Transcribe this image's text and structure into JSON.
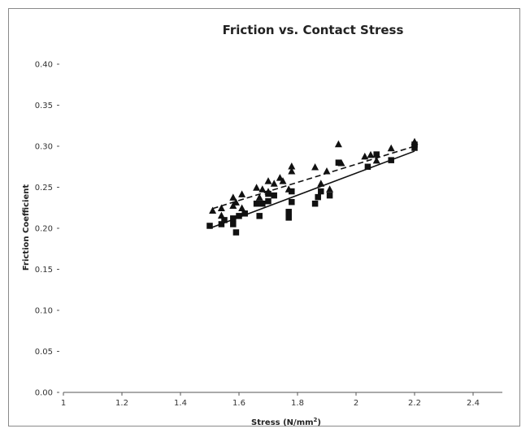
{
  "chart_data": {
    "type": "scatter",
    "title": "Friction vs. Contact Stress",
    "xlabel": "Stress (N/mm²)",
    "ylabel": "Friction Coefficient",
    "xlim": [
      1,
      2.5
    ],
    "ylim": [
      0.0,
      0.4
    ],
    "x_ticks": [
      "1",
      "1.2",
      "1.4",
      "1.6",
      "1.8",
      "2",
      "2.2",
      "2.4"
    ],
    "y_ticks": [
      "0.00",
      "0.05",
      "0.10",
      "0.15",
      "0.20",
      "0.25",
      "0.30",
      "0.35",
      "0.40"
    ],
    "grid": false,
    "legend": "none",
    "series": [
      {
        "marker": "triangle",
        "trendline": "dashed",
        "color": "#111111",
        "points": [
          [
            1.51,
            0.222
          ],
          [
            1.54,
            0.225
          ],
          [
            1.54,
            0.216
          ],
          [
            1.58,
            0.238
          ],
          [
            1.58,
            0.228
          ],
          [
            1.59,
            0.232
          ],
          [
            1.61,
            0.242
          ],
          [
            1.61,
            0.225
          ],
          [
            1.66,
            0.25
          ],
          [
            1.67,
            0.238
          ],
          [
            1.68,
            0.248
          ],
          [
            1.7,
            0.258
          ],
          [
            1.7,
            0.245
          ],
          [
            1.72,
            0.255
          ],
          [
            1.74,
            0.262
          ],
          [
            1.75,
            0.258
          ],
          [
            1.77,
            0.248
          ],
          [
            1.78,
            0.276
          ],
          [
            1.78,
            0.27
          ],
          [
            1.86,
            0.275
          ],
          [
            1.88,
            0.255
          ],
          [
            1.9,
            0.27
          ],
          [
            1.91,
            0.248
          ],
          [
            1.94,
            0.303
          ],
          [
            1.95,
            0.28
          ],
          [
            2.03,
            0.288
          ],
          [
            2.05,
            0.29
          ],
          [
            2.07,
            0.283
          ],
          [
            2.12,
            0.298
          ],
          [
            2.2,
            0.306
          ]
        ],
        "fit": [
          [
            1.51,
            0.224
          ],
          [
            2.2,
            0.3
          ]
        ]
      },
      {
        "marker": "square",
        "trendline": "solid",
        "color": "#111111",
        "points": [
          [
            1.5,
            0.203
          ],
          [
            1.54,
            0.205
          ],
          [
            1.55,
            0.21
          ],
          [
            1.58,
            0.212
          ],
          [
            1.58,
            0.205
          ],
          [
            1.59,
            0.195
          ],
          [
            1.6,
            0.215
          ],
          [
            1.62,
            0.218
          ],
          [
            1.66,
            0.23
          ],
          [
            1.67,
            0.215
          ],
          [
            1.68,
            0.23
          ],
          [
            1.7,
            0.233
          ],
          [
            1.7,
            0.242
          ],
          [
            1.72,
            0.24
          ],
          [
            1.77,
            0.22
          ],
          [
            1.77,
            0.213
          ],
          [
            1.78,
            0.232
          ],
          [
            1.78,
            0.245
          ],
          [
            1.86,
            0.23
          ],
          [
            1.87,
            0.238
          ],
          [
            1.88,
            0.245
          ],
          [
            1.91,
            0.24
          ],
          [
            1.94,
            0.28
          ],
          [
            2.04,
            0.275
          ],
          [
            2.07,
            0.29
          ],
          [
            2.12,
            0.283
          ],
          [
            2.2,
            0.298
          ],
          [
            2.2,
            0.302
          ]
        ],
        "fit": [
          [
            1.5,
            0.2
          ],
          [
            2.2,
            0.294
          ]
        ]
      }
    ]
  }
}
